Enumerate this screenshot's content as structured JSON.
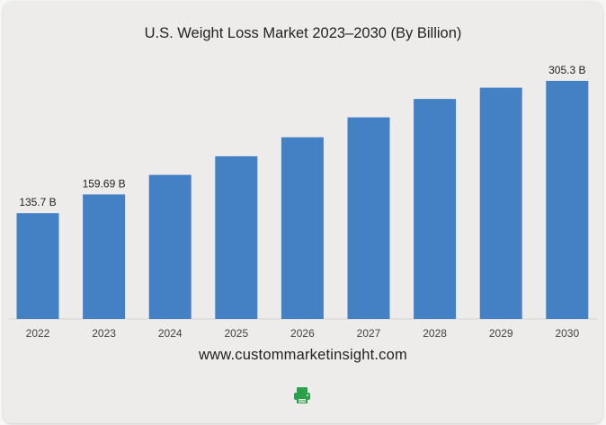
{
  "chart_data": {
    "type": "bar",
    "title": "U.S. Weight Loss Market 2023–2030 (By Billion)",
    "categories": [
      "2022",
      "2023",
      "2024",
      "2025",
      "2026",
      "2027",
      "2028",
      "2029",
      "2030"
    ],
    "values": [
      135.7,
      159.69,
      184.8,
      208.6,
      233.0,
      258.5,
      282.2,
      296.5,
      305.3
    ],
    "data_labels": [
      "135.7 B",
      "159.69 B",
      "",
      "",
      "",
      "",
      "",
      "",
      "305.3 B"
    ],
    "ylim": [
      0,
      305.3
    ],
    "bar_color": "#4380c4",
    "grid": false,
    "legend": "none"
  },
  "source_text": "www.custommarketinsight.com",
  "print_icon": {
    "name": "printer-icon",
    "color": "#2aa04a"
  }
}
